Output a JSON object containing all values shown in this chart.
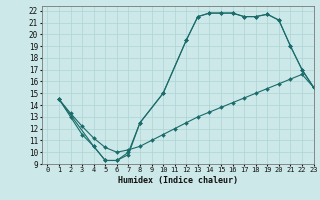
{
  "xlabel": "Humidex (Indice chaleur)",
  "bg_color": "#cce8e8",
  "grid_color": "#add4d4",
  "line_color": "#1a6b6b",
  "xlim": [
    -0.5,
    23
  ],
  "ylim": [
    9,
    22.4
  ],
  "xticks": [
    0,
    1,
    2,
    3,
    4,
    5,
    6,
    7,
    8,
    9,
    10,
    11,
    12,
    13,
    14,
    15,
    16,
    17,
    18,
    19,
    20,
    21,
    22,
    23
  ],
  "yticks": [
    9,
    10,
    11,
    12,
    13,
    14,
    15,
    16,
    17,
    18,
    19,
    20,
    21,
    22
  ],
  "curve_top_x": [
    1,
    2,
    3,
    4,
    5,
    6,
    7,
    8,
    10,
    12,
    13,
    14,
    15,
    16,
    17,
    18,
    19,
    20,
    21,
    22,
    23
  ],
  "curve_top_y": [
    14.5,
    13.0,
    11.5,
    10.5,
    9.3,
    9.3,
    10.0,
    12.5,
    15.0,
    19.5,
    21.5,
    21.8,
    21.8,
    21.8,
    21.5,
    21.5,
    21.7,
    21.2,
    19.0,
    17.0,
    15.5
  ],
  "curve_diag_x": [
    1,
    2,
    3,
    4,
    5,
    6,
    7,
    8,
    9,
    10,
    11,
    12,
    13,
    14,
    15,
    16,
    17,
    18,
    19,
    20,
    21,
    22,
    23
  ],
  "curve_diag_y": [
    14.5,
    13.3,
    12.2,
    11.2,
    10.4,
    10.0,
    10.2,
    10.5,
    11.0,
    11.5,
    12.0,
    12.5,
    13.0,
    13.4,
    13.8,
    14.2,
    14.6,
    15.0,
    15.4,
    15.8,
    16.2,
    16.6,
    15.5
  ],
  "curve_bot_x": [
    1,
    4,
    5,
    6,
    7,
    8,
    10,
    12,
    13,
    14,
    15,
    16,
    17,
    18,
    19,
    20,
    21,
    22,
    23
  ],
  "curve_bot_y": [
    14.5,
    10.5,
    9.3,
    9.3,
    9.8,
    12.5,
    15.0,
    19.5,
    21.5,
    21.8,
    21.8,
    21.8,
    21.5,
    21.5,
    21.7,
    21.2,
    19.0,
    17.0,
    15.5
  ]
}
